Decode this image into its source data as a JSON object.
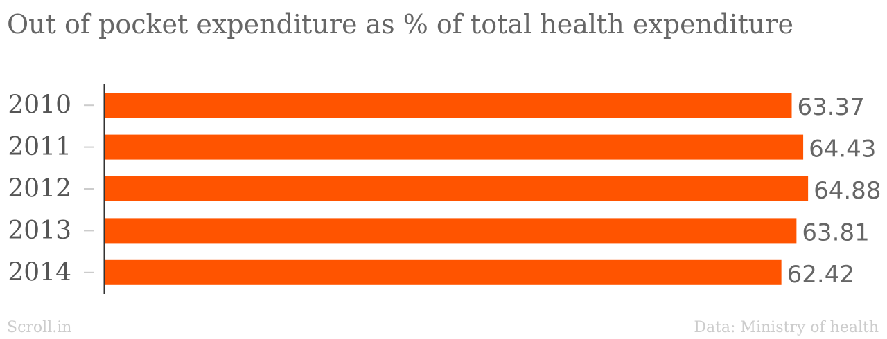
{
  "chart_data": {
    "type": "bar",
    "orientation": "horizontal",
    "title": "Out of pocket expenditure as % of total health expenditure",
    "categories": [
      "2010",
      "2011",
      "2012",
      "2013",
      "2014"
    ],
    "values": [
      63.37,
      64.43,
      64.88,
      63.81,
      62.42
    ],
    "value_labels": [
      "63.37",
      "64.43",
      "64.88",
      "63.81",
      "62.42"
    ],
    "xlim": [
      0,
      65
    ],
    "grid": false,
    "legend": "none",
    "bar_color": "#ff5400"
  },
  "footer": {
    "brand": "Scroll.in",
    "source": "Data: Ministry of health"
  },
  "colors": {
    "title": "#666666",
    "axis": "#333333",
    "tick": "#cccccc",
    "footer": "#cccccc"
  }
}
